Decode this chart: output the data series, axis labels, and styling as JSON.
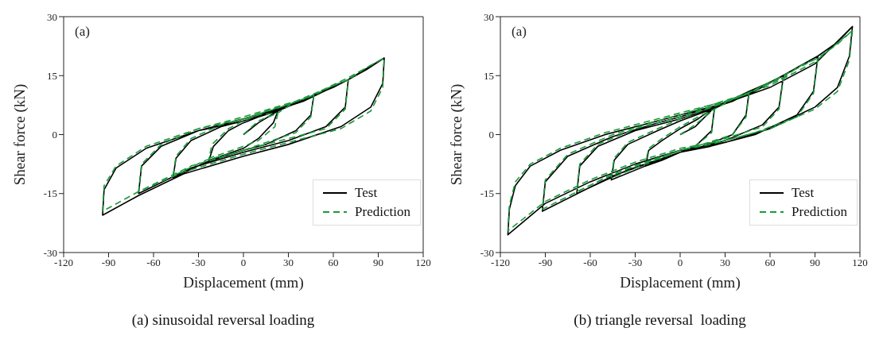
{
  "chart_data": [
    {
      "type": "line",
      "xlabel": "Displacement (mm)",
      "ylabel": "Shear force (kN)",
      "xlim": [
        -120,
        120
      ],
      "xticks": [
        -120,
        -90,
        -60,
        -30,
        0,
        30,
        60,
        90,
        120
      ],
      "ylim": [
        -30,
        30
      ],
      "yticks": [
        -30,
        -15,
        0,
        15,
        30
      ],
      "legend": "bottom right",
      "annotations": [
        "(a)",
        "(a) sinusoidal reversal loading"
      ],
      "series": [
        {
          "name": "Test",
          "color": "#000000",
          "line_style": "solid",
          "x": [
            0,
            10,
            23,
            20,
            10,
            0,
            -15,
            -23,
            -20,
            -10,
            0,
            10,
            23,
            35,
            47,
            45,
            35,
            15,
            0,
            -25,
            -47,
            -45,
            -35,
            -15,
            0,
            25,
            47,
            60,
            70,
            68,
            55,
            30,
            0,
            -35,
            -70,
            -68,
            -55,
            -30,
            0,
            35,
            70,
            82,
            94,
            93,
            85,
            65,
            30,
            0,
            -40,
            -70,
            -94,
            -93,
            -85,
            -65,
            -30,
            0,
            40,
            70,
            94
          ],
          "values": [
            0,
            3,
            6,
            3,
            -1,
            -3.5,
            -5.5,
            -6.5,
            -3,
            1,
            3,
            4.5,
            6,
            8,
            10,
            5,
            1,
            -2.5,
            -4,
            -7,
            -11,
            -6,
            -1.5,
            2,
            3.5,
            6.5,
            10,
            12,
            14,
            7,
            2,
            -1.5,
            -4.5,
            -8.5,
            -15,
            -8,
            -3,
            1,
            4,
            8,
            14,
            16.5,
            19.5,
            13,
            7,
            2,
            -2.5,
            -5.5,
            -10,
            -15.5,
            -20.5,
            -14,
            -8.5,
            -3.5,
            1,
            3.5,
            8.5,
            14,
            19.5
          ]
        },
        {
          "name": "Prediction",
          "color": "#1a9a3a",
          "line_style": "dashed",
          "x": [
            0,
            10,
            23,
            21,
            10,
            0,
            -15,
            -23,
            -21,
            -10,
            0,
            10,
            23,
            35,
            47,
            45,
            35,
            15,
            0,
            -25,
            -47,
            -45,
            -35,
            -15,
            0,
            25,
            47,
            60,
            70,
            68,
            55,
            30,
            0,
            -35,
            -70,
            -68,
            -55,
            -30,
            0,
            35,
            70,
            82,
            94,
            93,
            85,
            65,
            30,
            0,
            -40,
            -70,
            -94,
            -93,
            -85,
            -65,
            -30,
            0,
            40,
            70,
            94
          ],
          "values": [
            0,
            3.5,
            5.5,
            2,
            -1.5,
            -3,
            -5,
            -6,
            -2.5,
            1.5,
            3.5,
            5,
            5.5,
            8.5,
            10,
            4.5,
            0.5,
            -2,
            -4,
            -6.5,
            -10.5,
            -5.5,
            -1,
            2.5,
            4,
            7,
            10,
            12.5,
            14,
            6.5,
            1.5,
            -1,
            -4,
            -8,
            -14.5,
            -7.5,
            -2.5,
            1.5,
            4.5,
            8.5,
            14,
            17,
            19.5,
            12,
            6,
            1.5,
            -2,
            -5,
            -9.5,
            -14.5,
            -19.5,
            -13,
            -8,
            -3,
            1.5,
            4,
            9,
            14.5,
            19.5
          ]
        }
      ]
    },
    {
      "type": "line",
      "xlabel": "Displacement (mm)",
      "ylabel": "Shear force (kN)",
      "xlim": [
        -120,
        120
      ],
      "xticks": [
        -120,
        -90,
        -60,
        -30,
        0,
        30,
        60,
        90,
        120
      ],
      "ylim": [
        -30,
        30
      ],
      "yticks": [
        -30,
        -15,
        0,
        15,
        30
      ],
      "legend": "bottom right",
      "annotations": [
        "(a)",
        "(b) triangle reversal  loading"
      ],
      "series": [
        {
          "name": "Test",
          "color": "#000000",
          "line_style": "solid",
          "x": [
            0,
            10,
            23,
            21,
            10,
            0,
            -12,
            -23,
            -21,
            -12,
            0,
            12,
            23,
            35,
            46,
            44,
            35,
            15,
            0,
            -20,
            -46,
            -44,
            -35,
            -15,
            0,
            25,
            46,
            58,
            69,
            66,
            55,
            30,
            0,
            -35,
            -69,
            -67,
            -55,
            -30,
            0,
            35,
            69,
            80,
            92,
            89,
            78,
            50,
            20,
            0,
            -45,
            -92,
            -90,
            -75,
            -45,
            -15,
            0,
            45,
            92,
            105,
            115,
            113,
            105,
            90,
            60,
            30,
            0,
            -30,
            -60,
            -90,
            -115,
            -114,
            -110,
            -100,
            -80,
            -50,
            -20,
            0,
            30,
            60,
            90,
            115
          ],
          "values": [
            0,
            2,
            7,
            1,
            -3,
            -4.5,
            -6.5,
            -8,
            -4,
            -1.5,
            1.5,
            4,
            7,
            9,
            11,
            5,
            0,
            -3,
            -4.5,
            -7.5,
            -11.5,
            -6.5,
            -2.5,
            1,
            3.5,
            7,
            11,
            13,
            15,
            7,
            2.5,
            -1.5,
            -4.5,
            -9,
            -15,
            -8,
            -3,
            1,
            4,
            8.5,
            15,
            17.5,
            20,
            11,
            5,
            0,
            -3,
            -4.5,
            -10.5,
            -19.5,
            -12,
            -5.5,
            -0.5,
            3,
            4.5,
            10,
            20,
            23.5,
            27.5,
            20,
            12,
            7,
            1.5,
            -2,
            -4,
            -7.5,
            -12,
            -17.5,
            -25.5,
            -19,
            -13,
            -8,
            -4,
            0,
            3,
            5,
            8,
            12,
            18,
            27.5
          ]
        },
        {
          "name": "Prediction",
          "color": "#1a9a3a",
          "line_style": "dashed",
          "x": [
            0,
            10,
            23,
            21,
            10,
            0,
            -12,
            -23,
            -21,
            -12,
            0,
            12,
            23,
            35,
            46,
            44,
            35,
            15,
            0,
            -20,
            -46,
            -44,
            -35,
            -15,
            0,
            25,
            46,
            58,
            69,
            66,
            55,
            30,
            0,
            -35,
            -69,
            -67,
            -55,
            -30,
            0,
            35,
            69,
            80,
            92,
            89,
            78,
            50,
            20,
            0,
            -45,
            -92,
            -90,
            -75,
            -45,
            -15,
            0,
            45,
            92,
            105,
            115,
            113,
            105,
            90,
            60,
            30,
            0,
            -30,
            -60,
            -90,
            -115,
            -114,
            -110,
            -100,
            -80,
            -50,
            -20,
            0,
            30,
            60,
            90,
            115
          ],
          "values": [
            0,
            2.5,
            6.5,
            0.5,
            -3,
            -4,
            -6,
            -7,
            -3.5,
            -1,
            2,
            4.5,
            6.5,
            9,
            10.5,
            4.5,
            0,
            -2.5,
            -4,
            -7,
            -11,
            -6,
            -2,
            1.5,
            4,
            7.5,
            10.5,
            13,
            14.5,
            6.5,
            2,
            -1,
            -4,
            -8.5,
            -14.5,
            -7.5,
            -2.5,
            1.5,
            4.5,
            9,
            14.5,
            17.5,
            19.5,
            10.5,
            4.5,
            0.5,
            -2.5,
            -4,
            -10,
            -19,
            -11.5,
            -5,
            0,
            3.5,
            5,
            10.5,
            19.5,
            23,
            26.5,
            19,
            11,
            6.5,
            1.5,
            -1.5,
            -3.5,
            -7,
            -11.5,
            -17,
            -24.5,
            -18,
            -12,
            -7.5,
            -3.5,
            0.5,
            3.5,
            5.5,
            8.5,
            12.5,
            18.5,
            26.5
          ]
        }
      ]
    }
  ]
}
